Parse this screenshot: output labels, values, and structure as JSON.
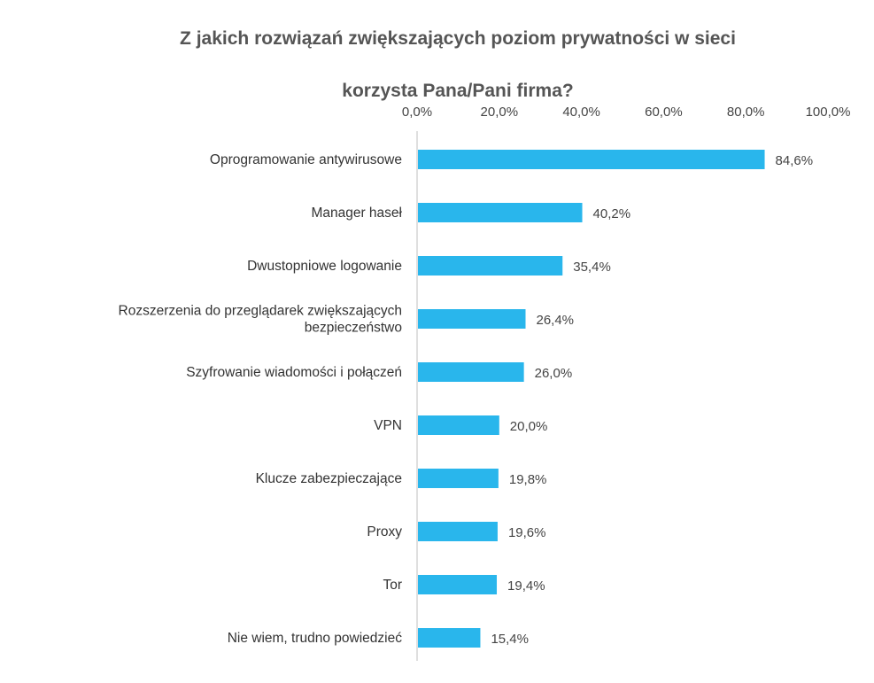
{
  "title_line1": "Z jakich rozwiązań zwiększających poziom prywatności w sieci",
  "title_line2": "korzysta Pana/Pani firma?",
  "colors": {
    "bar": "#29B6EC",
    "axis": "#BFBFBF"
  },
  "chart_data": {
    "type": "bar",
    "orientation": "horizontal",
    "title": "Z jakich rozwiązań zwiększających poziom prywatności w sieci korzysta Pana/Pani firma?",
    "xlim": [
      0,
      100
    ],
    "tick_values": [
      0,
      20,
      40,
      60,
      80,
      100
    ],
    "tick_labels": [
      "0,0%",
      "20,0%",
      "40,0%",
      "60,0%",
      "80,0%",
      "100,0%"
    ],
    "axis_position": "top",
    "grid": false,
    "legend": false,
    "categories": [
      [
        "Oprogramowanie antywirusowe"
      ],
      [
        "Manager haseł"
      ],
      [
        "Dwustopniowe logowanie"
      ],
      [
        "Rozszerzenia do przeglądarek zwiększających",
        "bezpieczeństwo"
      ],
      [
        "Szyfrowanie wiadomości i połączeń"
      ],
      [
        "VPN"
      ],
      [
        "Klucze zabezpieczające"
      ],
      [
        "Proxy"
      ],
      [
        "Tor"
      ],
      [
        "Nie wiem, trudno powiedzieć"
      ]
    ],
    "values": [
      84.6,
      40.2,
      35.4,
      26.4,
      26.0,
      20.0,
      19.8,
      19.6,
      19.4,
      15.4
    ],
    "value_labels": [
      "84,6%",
      "40,2%",
      "35,4%",
      "26,4%",
      "26,0%",
      "20,0%",
      "19,8%",
      "19,6%",
      "19,4%",
      "15,4%"
    ]
  }
}
